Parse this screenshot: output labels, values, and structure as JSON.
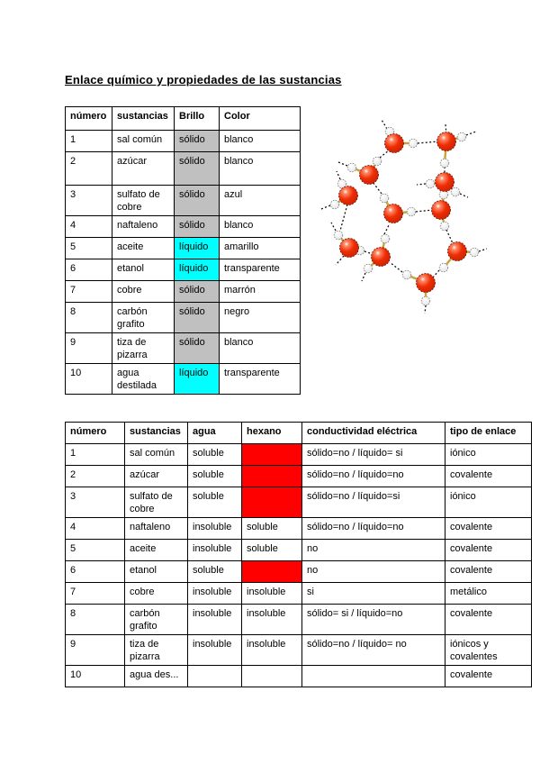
{
  "page": {
    "title": "Enlace químico y propiedades de las sustancias"
  },
  "colors": {
    "solid_highlight": "#C0C0C0",
    "liquid_highlight": "#00FFFF",
    "redacted_highlight": "#FF0000",
    "oxygen": "#EE2D05",
    "hydrogen": "#EDEDED",
    "bond": "#C8A23C"
  },
  "table1": {
    "headers": [
      "número",
      "sustancias",
      "Brillo",
      "Color"
    ],
    "rows": [
      {
        "numero": "1",
        "sustancia": "sal común",
        "estado": "sólido",
        "estado_tipo": "solid",
        "color": "blanco"
      },
      {
        "numero": "2",
        "sustancia": "azúcar",
        "estado": "sólido",
        "estado_tipo": "solid",
        "color": "blanco"
      },
      {
        "numero": "3",
        "sustancia": "sulfato de cobre",
        "estado": "sólido",
        "estado_tipo": "solid",
        "color": "azul"
      },
      {
        "numero": "4",
        "sustancia": "naftaleno",
        "estado": "sólido",
        "estado_tipo": "solid",
        "color": "blanco"
      },
      {
        "numero": "5",
        "sustancia": "aceite",
        "estado": "líquido",
        "estado_tipo": "liquid",
        "color": "amarillo"
      },
      {
        "numero": "6",
        "sustancia": "etanol",
        "estado": "líquido",
        "estado_tipo": "liquid",
        "color": "transparente"
      },
      {
        "numero": "7",
        "sustancia": "cobre",
        "estado": "sólido",
        "estado_tipo": "solid",
        "color": "marrón"
      },
      {
        "numero": "8",
        "sustancia": "carbón grafito",
        "estado": "sólido",
        "estado_tipo": "solid",
        "color": "negro"
      },
      {
        "numero": "9",
        "sustancia": "tiza de pizarra",
        "estado": "sólido",
        "estado_tipo": "solid",
        "color": "blanco"
      },
      {
        "numero": "10",
        "sustancia": "agua destilada",
        "estado": "líquido",
        "estado_tipo": "liquid",
        "color": "transparente"
      }
    ]
  },
  "table2": {
    "headers": [
      "número",
      "sustancias",
      "agua",
      "hexano",
      "conductividad eléctrica",
      "tipo de enlace"
    ],
    "rows": [
      {
        "numero": "1",
        "sustancia": "sal común",
        "agua": "soluble",
        "hexano": "",
        "hexano_red": true,
        "conductividad": "sólido=no / líquido= si",
        "enlace": "iónico"
      },
      {
        "numero": "2",
        "sustancia": "azúcar",
        "agua": "soluble",
        "hexano": "",
        "hexano_red": true,
        "conductividad": "sólido=no / líquido=no",
        "enlace": "covalente"
      },
      {
        "numero": "3",
        "sustancia": "sulfato de cobre",
        "agua": "soluble",
        "hexano": "",
        "hexano_red": true,
        "conductividad": "sólido=no / líquido=si",
        "enlace": "iónico"
      },
      {
        "numero": "4",
        "sustancia": "naftaleno",
        "agua": "insoluble",
        "hexano": "soluble",
        "hexano_red": false,
        "conductividad": "sólido=no / líquido=no",
        "enlace": "covalente"
      },
      {
        "numero": "5",
        "sustancia": "aceite",
        "agua": "insoluble",
        "hexano": "soluble",
        "hexano_red": false,
        "conductividad": "no",
        "enlace": "covalente"
      },
      {
        "numero": "6",
        "sustancia": "etanol",
        "agua": "soluble",
        "hexano": "",
        "hexano_red": true,
        "conductividad": "no",
        "enlace": "covalente"
      },
      {
        "numero": "7",
        "sustancia": "cobre",
        "agua": "insoluble",
        "hexano": "insoluble",
        "hexano_red": false,
        "conductividad": "si",
        "enlace": "metálico"
      },
      {
        "numero": "8",
        "sustancia": "carbón grafito",
        "agua": "insoluble",
        "hexano": "insoluble",
        "hexano_red": false,
        "conductividad": "sólido= si / líquido=no",
        "enlace": "covalente"
      },
      {
        "numero": "9",
        "sustancia": "tiza de pizarra",
        "agua": "insoluble",
        "hexano": "insoluble",
        "hexano_red": false,
        "conductividad": "sólido=no / líquido= no",
        "enlace": "iónicos y covalentes"
      },
      {
        "numero": "10",
        "sustancia": "agua des...",
        "agua": "",
        "hexano": "",
        "hexano_red": false,
        "conductividad": "",
        "enlace": "covalente"
      }
    ]
  },
  "figure": {
    "name": "water-molecule-cluster",
    "oxygen_radius": 10.5,
    "hydrogen_radius": 4.8,
    "molecules": [
      {
        "o": [
          98,
          54
        ],
        "h": [
          [
            93,
            41
          ],
          [
            119,
            54
          ]
        ]
      },
      {
        "o": [
          156,
          52
        ],
        "h": [
          [
            173,
            47
          ],
          [
            154,
            76
          ]
        ]
      },
      {
        "o": [
          70,
          89
        ],
        "h": [
          [
            79,
            74
          ],
          [
            51,
            81
          ]
        ]
      },
      {
        "o": [
          47,
          112
        ],
        "h": [
          [
            40,
            99
          ],
          [
            32,
            122
          ]
        ]
      },
      {
        "o": [
          154,
          97
        ],
        "h": [
          [
            138,
            99
          ],
          [
            166,
            108
          ]
        ]
      },
      {
        "o": [
          97,
          132
        ],
        "h": [
          [
            117,
            130
          ],
          [
            87,
            115
          ]
        ]
      },
      {
        "o": [
          150,
          128
        ],
        "h": [
          [
            153,
            111
          ],
          [
            154,
            146
          ]
        ]
      },
      {
        "o": [
          48,
          170
        ],
        "h": [
          [
            36,
            156
          ],
          [
            60,
            173
          ]
        ]
      },
      {
        "o": [
          83,
          180
        ],
        "h": [
          [
            88,
            160
          ],
          [
            69,
            193
          ]
        ]
      },
      {
        "o": [
          168,
          174
        ],
        "h": [
          [
            187,
            175
          ],
          [
            153,
            192
          ]
        ]
      },
      {
        "o": [
          133,
          209
        ],
        "h": [
          [
            112,
            200
          ],
          [
            133,
            229
          ]
        ]
      }
    ],
    "hbonds": [
      [
        124,
        54,
        147,
        52
      ],
      [
        82,
        70,
        92,
        62
      ],
      [
        90,
        38,
        84,
        28
      ],
      [
        154,
        80,
        154,
        89
      ],
      [
        84,
        110,
        74,
        97
      ],
      [
        46,
        122,
        38,
        151
      ],
      [
        133,
        99,
        123,
        100
      ],
      [
        153,
        103,
        153,
        107
      ],
      [
        122,
        130,
        141,
        128
      ],
      [
        87,
        155,
        93,
        143
      ],
      [
        65,
        174,
        74,
        177
      ],
      [
        156,
        150,
        163,
        165
      ],
      [
        148,
        195,
        141,
        203
      ],
      [
        107,
        197,
        93,
        186
      ],
      [
        156,
        44,
        155,
        33
      ],
      [
        178,
        45,
        189,
        41
      ],
      [
        46,
        79,
        36,
        75
      ],
      [
        38,
        94,
        34,
        85
      ],
      [
        27,
        123,
        17,
        127
      ],
      [
        171,
        110,
        180,
        114
      ],
      [
        33,
        151,
        28,
        142
      ],
      [
        42,
        179,
        33,
        189
      ],
      [
        66,
        198,
        62,
        207
      ],
      [
        192,
        174,
        201,
        171
      ],
      [
        133,
        234,
        132,
        243
      ]
    ]
  }
}
